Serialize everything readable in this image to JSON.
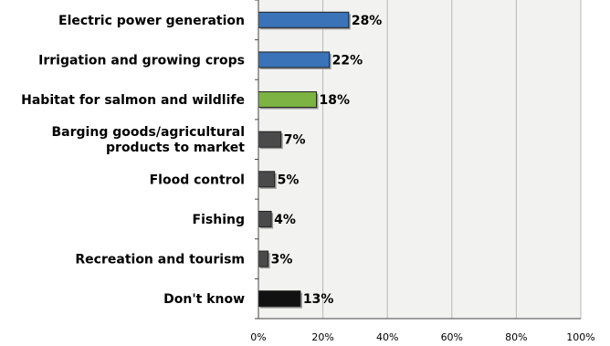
{
  "chart_data": {
    "type": "bar",
    "orientation": "horizontal",
    "categories": [
      [
        "Electric power generation"
      ],
      [
        "Irrigation and growing crops"
      ],
      [
        "Habitat for salmon and wildlife"
      ],
      [
        "Barging goods/agricultural",
        "products to market"
      ],
      [
        "Flood control"
      ],
      [
        "Fishing"
      ],
      [
        "Recreation and tourism"
      ],
      [
        "Don't know"
      ]
    ],
    "values": [
      28,
      22,
      18,
      7,
      5,
      4,
      3,
      13
    ],
    "value_labels": [
      "28%",
      "22%",
      "18%",
      "7%",
      "5%",
      "4%",
      "3%",
      "13%"
    ],
    "bar_colors": [
      "#3a73b8",
      "#3a73b8",
      "#7cb342",
      "#4a4a4a",
      "#4a4a4a",
      "#4a4a4a",
      "#4a4a4a",
      "#111111"
    ],
    "xlim": [
      0,
      100
    ],
    "xticks": [
      0,
      20,
      40,
      60,
      80,
      100
    ],
    "xtick_labels": [
      "0%",
      "20%",
      "40%",
      "60%",
      "80%",
      "100%"
    ],
    "grid": true,
    "legend": "none",
    "plot_background": "#f2f2f0"
  }
}
